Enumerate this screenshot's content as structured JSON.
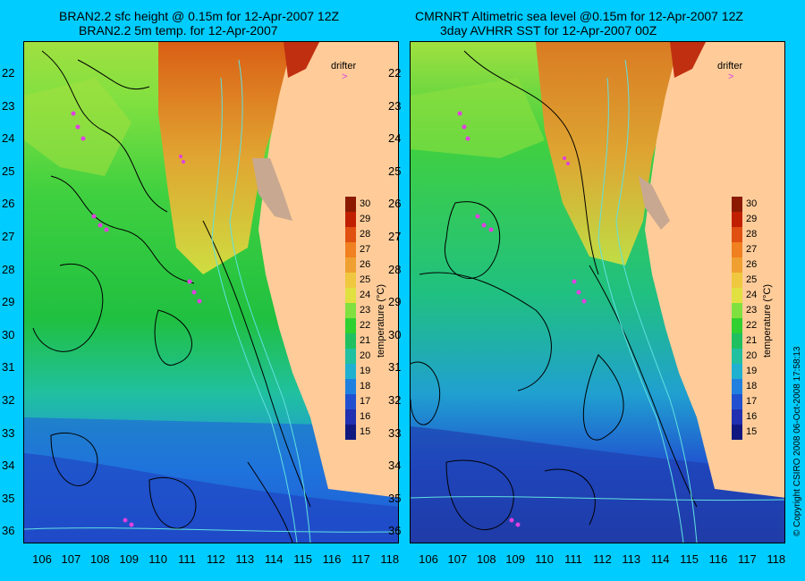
{
  "panels": [
    {
      "title_line1": "BRAN2.2 sfc height @ 0.15m for 12-Apr-2007 12Z",
      "title_line2": "BRAN2.2 5m temp. for 12-Apr-2007",
      "drifter_label": "drifter",
      "drifter_icon": "drifter-arrow-icon"
    },
    {
      "title_line1": "CMRNRT Altimetric sea level  @0.15m  for 12-Apr-2007 12Z",
      "title_line2": "3day AVHRR SST for 12-Apr-2007 00Z",
      "drifter_label": "drifter",
      "drifter_icon": "drifter-arrow-icon"
    }
  ],
  "latitude_labels": [
    "22",
    "23",
    "24",
    "25",
    "26",
    "27",
    "28",
    "29",
    "30",
    "31",
    "32",
    "33",
    "34",
    "35",
    "36"
  ],
  "longitude_labels": [
    "106",
    "107",
    "108",
    "109",
    "110",
    "111",
    "112",
    "113",
    "114",
    "115",
    "116",
    "117",
    "118"
  ],
  "colorbar": {
    "label": "temperature (°C)",
    "ticks": [
      "30",
      "29",
      "28",
      "27",
      "26",
      "25",
      "24",
      "23",
      "22",
      "21",
      "20",
      "19",
      "18",
      "17",
      "16",
      "15"
    ],
    "colors": [
      "#8b1a00",
      "#c02000",
      "#e05010",
      "#f08020",
      "#f0a030",
      "#f0c840",
      "#e0e040",
      "#80e040",
      "#30d030",
      "#20c060",
      "#20c0a0",
      "#20b0d0",
      "#2080e0",
      "#2050d0",
      "#2030b0",
      "#101880"
    ]
  },
  "land_color": "#ffcc99",
  "background_color": "#00ccff",
  "drifter_color": "#e040e0",
  "copyright": "© Copyright CSIRO 2008  06-Oct-2008 17:58:13"
}
